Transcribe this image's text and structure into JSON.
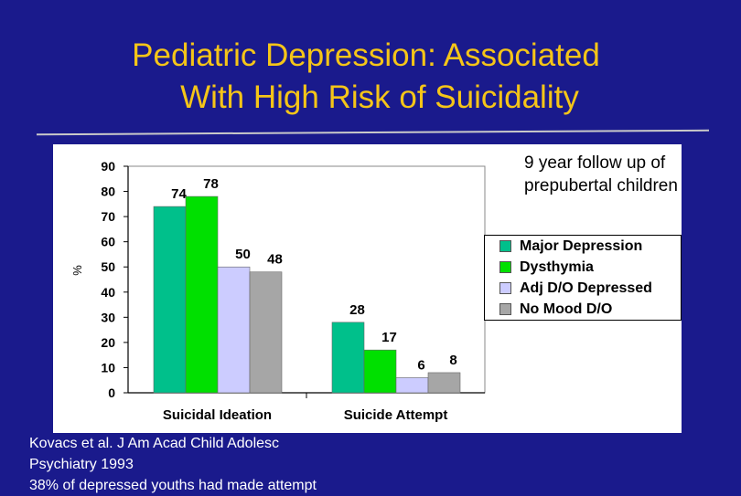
{
  "slide": {
    "title_line1": "Pediatric Depression: Associated",
    "title_line2": "With High Risk of Suicidality",
    "note": "9 year follow up of prepubertal children",
    "source_line1": "Kovacs et al. J Am Acad Child Adolesc",
    "source_line2": "Psychiatry 1993",
    "source_line3": "38% of depressed youths had made attempt"
  },
  "colors": {
    "background": "#1a1a8c",
    "title": "#f5c518",
    "major_depression": "#00c08b",
    "dysthymia": "#00e000",
    "adj_do_depressed": "#ccccff",
    "no_mood_do": "#a6a6a6"
  },
  "chart_data": {
    "type": "bar",
    "title": "",
    "xlabel": "",
    "ylabel": "%",
    "ylim": [
      0,
      90
    ],
    "yticks": [
      0,
      10,
      20,
      30,
      40,
      50,
      60,
      70,
      80,
      90
    ],
    "grid": false,
    "legend_position": "right",
    "categories": [
      "Suicidal Ideation",
      "Suicide Attempt"
    ],
    "series": [
      {
        "name": "Major Depression",
        "color": "#00c08b",
        "values": [
          74,
          28
        ]
      },
      {
        "name": "Dysthymia",
        "color": "#00e000",
        "values": [
          78,
          17
        ]
      },
      {
        "name": "Adj D/O Depressed",
        "color": "#ccccff",
        "values": [
          50,
          6
        ]
      },
      {
        "name": "No Mood D/O",
        "color": "#a6a6a6",
        "values": [
          48,
          8
        ]
      }
    ]
  }
}
